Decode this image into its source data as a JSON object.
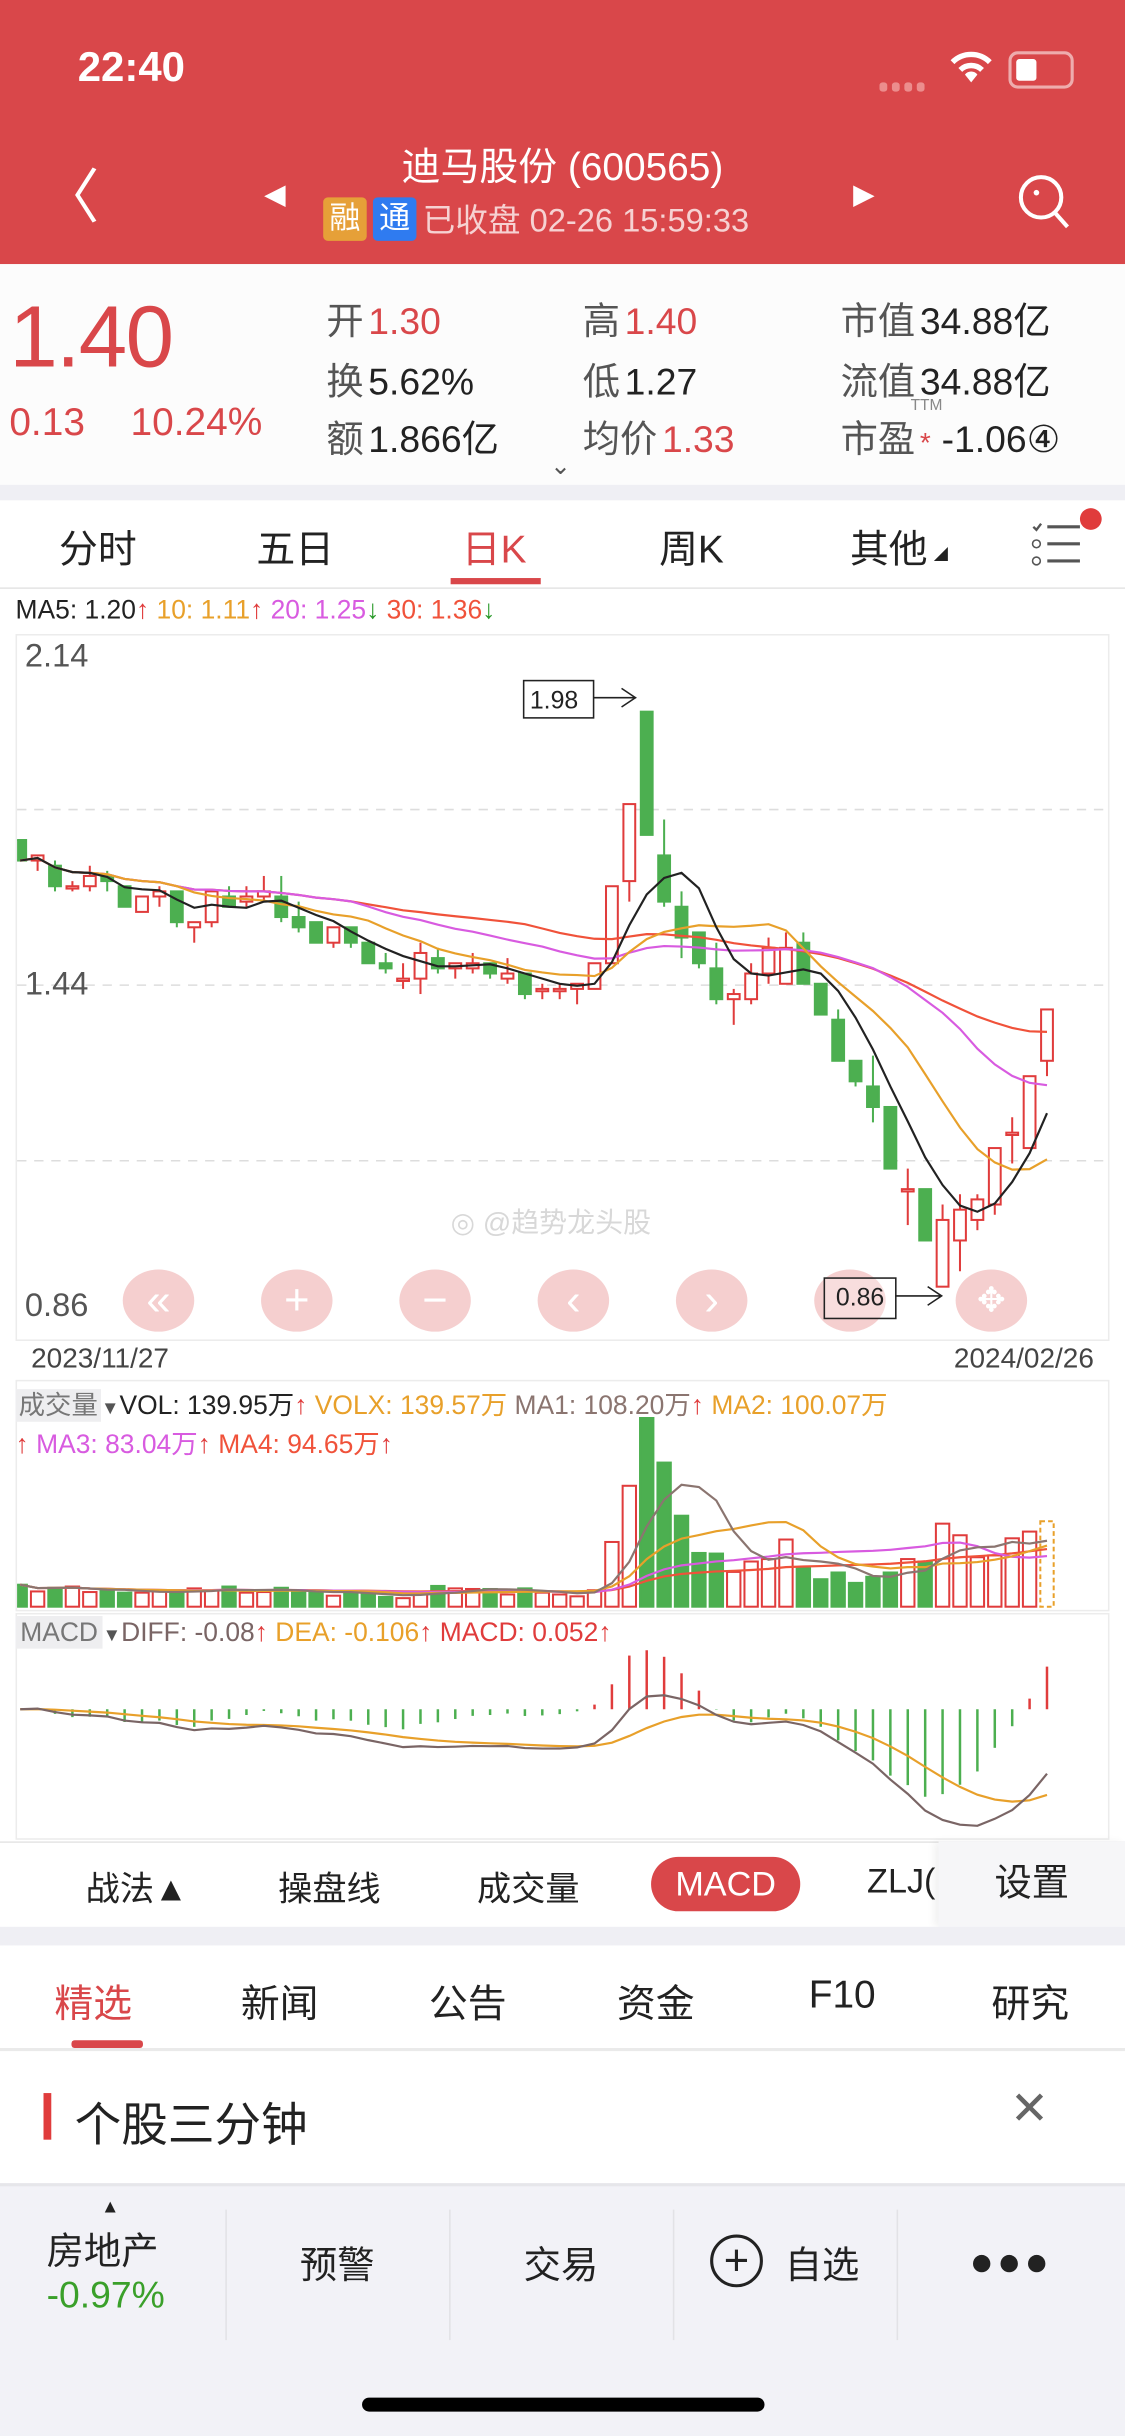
{
  "status_bar": {
    "time": "22:40"
  },
  "header": {
    "title": "迪马股份 (600565)",
    "badge_margin": "融",
    "badge_connect": "通",
    "market_status": "已收盘 02-26 15:59:33",
    "colors": {
      "background": "#d9474a",
      "badge_margin": "#e6a038",
      "badge_connect": "#2f7bf0"
    }
  },
  "quote": {
    "price": "1.40",
    "change": "0.13",
    "change_pct": "10.24%",
    "stats": [
      {
        "label": "开",
        "value": "1.30",
        "color": "red"
      },
      {
        "label": "换",
        "value": "5.62%",
        "color": "dark"
      },
      {
        "label": "额",
        "value": "1.866亿",
        "color": "dark"
      },
      {
        "label": "高",
        "value": "1.40",
        "color": "red"
      },
      {
        "label": "低",
        "value": "1.27",
        "color": "dark"
      },
      {
        "label": "均价",
        "value": "1.33",
        "color": "red"
      },
      {
        "label": "市值",
        "value": "34.88亿",
        "color": "dark"
      },
      {
        "label": "流值",
        "value": "34.88亿",
        "color": "dark"
      },
      {
        "label": "市盈",
        "value": "-1.06④",
        "color": "dark",
        "sup": "TTM",
        "mark": "*"
      }
    ]
  },
  "period_tabs": [
    {
      "label": "分时"
    },
    {
      "label": "五日"
    },
    {
      "label": "日K",
      "active": true
    },
    {
      "label": "周K"
    },
    {
      "label": "其他"
    }
  ],
  "ma_legend": {
    "ma5": "MA5: 1.20",
    "ma5_arrow": "↑",
    "ma10": "10: 1.11",
    "ma10_arrow": "↑",
    "ma20": "20: 1.25",
    "ma20_arrow": "↓",
    "ma30": "30: 1.36",
    "ma30_arrow": "↓"
  },
  "price_axis": {
    "top": "2.14",
    "mid": "1.44",
    "bottom": "0.86"
  },
  "date_axis": {
    "start": "2023/11/27",
    "end": "2024/02/26"
  },
  "annotations": {
    "high": "1.98",
    "low": "0.86"
  },
  "watermark": "@趋势龙头股",
  "volume_legend": {
    "name": "成交量",
    "vol": "VOL: 139.95万",
    "vol_arrow": "↑",
    "volx": "VOLX: 139.57万",
    "ma1": "MA1: 108.20万",
    "ma1_arrow": "↑",
    "ma2": "MA2: 100.07万",
    "ma2_arrow": "↑",
    "ma3": "MA3: 83.04万",
    "ma3_arrow": "↑",
    "ma4": "MA4: 94.65万",
    "ma4_arrow": "↑"
  },
  "macd_legend": {
    "name": "MACD",
    "diff": "DIFF: -0.08",
    "diff_arrow": "↑",
    "dea": "DEA: -0.106",
    "dea_arrow": "↑",
    "macd": "MACD: 0.052",
    "macd_arrow": "↑"
  },
  "indicator_bar": {
    "items": [
      "战法▲",
      "操盘线",
      "成交量",
      "MACD",
      "ZLJ("
    ],
    "active": "MACD",
    "settings": "设置"
  },
  "news_tabs": [
    {
      "label": "精选",
      "active": true
    },
    {
      "label": "新闻"
    },
    {
      "label": "公告"
    },
    {
      "label": "资金"
    },
    {
      "label": "F10"
    },
    {
      "label": "研究"
    }
  ],
  "section": {
    "title": "个股三分钟"
  },
  "bottom_bar": {
    "sector": "房地产",
    "sector_change": "-0.97%",
    "alert": "预警",
    "trade": "交易",
    "watchlist": "自选"
  },
  "chart_data": {
    "type": "candlestick",
    "date_range": [
      "2023/11/27",
      "2024/02/26"
    ],
    "y_range_labels": [
      "2.14",
      "1.44",
      "0.86"
    ],
    "up_color": "#e03c3c",
    "down_color": "#4caf50",
    "ma_colors": {
      "ma5": "#222222",
      "ma10": "#e8a02a",
      "ma20": "#d85be0",
      "ma30": "#f0523a"
    },
    "ohlc": [
      [
        1.73,
        1.73,
        1.69,
        1.69
      ],
      [
        1.69,
        1.7,
        1.67,
        1.7
      ],
      [
        1.68,
        1.69,
        1.63,
        1.64
      ],
      [
        1.64,
        1.65,
        1.63,
        1.64
      ],
      [
        1.64,
        1.68,
        1.63,
        1.66
      ],
      [
        1.66,
        1.67,
        1.63,
        1.65
      ],
      [
        1.64,
        1.64,
        1.6,
        1.6
      ],
      [
        1.59,
        1.62,
        1.59,
        1.62
      ],
      [
        1.62,
        1.64,
        1.6,
        1.63
      ],
      [
        1.63,
        1.63,
        1.56,
        1.57
      ],
      [
        1.56,
        1.57,
        1.53,
        1.57
      ],
      [
        1.57,
        1.63,
        1.56,
        1.63
      ],
      [
        1.62,
        1.64,
        1.6,
        1.6
      ],
      [
        1.61,
        1.64,
        1.6,
        1.62
      ],
      [
        1.62,
        1.66,
        1.61,
        1.63
      ],
      [
        1.62,
        1.66,
        1.57,
        1.58
      ],
      [
        1.58,
        1.61,
        1.55,
        1.56
      ],
      [
        1.57,
        1.57,
        1.53,
        1.53
      ],
      [
        1.53,
        1.56,
        1.52,
        1.56
      ],
      [
        1.56,
        1.56,
        1.52,
        1.53
      ],
      [
        1.53,
        1.53,
        1.49,
        1.49
      ],
      [
        1.49,
        1.51,
        1.47,
        1.48
      ],
      [
        1.46,
        1.49,
        1.44,
        1.46
      ],
      [
        1.46,
        1.53,
        1.43,
        1.51
      ],
      [
        1.5,
        1.52,
        1.47,
        1.48
      ],
      [
        1.48,
        1.49,
        1.46,
        1.49
      ],
      [
        1.48,
        1.51,
        1.47,
        1.49
      ],
      [
        1.49,
        1.49,
        1.46,
        1.47
      ],
      [
        1.46,
        1.5,
        1.45,
        1.47
      ],
      [
        1.47,
        1.47,
        1.42,
        1.43
      ],
      [
        1.44,
        1.45,
        1.42,
        1.44
      ],
      [
        1.44,
        1.45,
        1.42,
        1.44
      ],
      [
        1.44,
        1.45,
        1.41,
        1.45
      ],
      [
        1.44,
        1.49,
        1.44,
        1.49
      ],
      [
        1.49,
        1.64,
        1.49,
        1.64
      ],
      [
        1.65,
        1.8,
        1.61,
        1.8
      ],
      [
        1.98,
        1.98,
        1.74,
        1.74
      ],
      [
        1.7,
        1.77,
        1.6,
        1.61
      ],
      [
        1.6,
        1.63,
        1.5,
        1.54
      ],
      [
        1.55,
        1.55,
        1.48,
        1.49
      ],
      [
        1.48,
        1.53,
        1.41,
        1.42
      ],
      [
        1.42,
        1.44,
        1.37,
        1.43
      ],
      [
        1.42,
        1.49,
        1.41,
        1.47
      ],
      [
        1.47,
        1.54,
        1.45,
        1.52
      ],
      [
        1.45,
        1.55,
        1.45,
        1.52
      ],
      [
        1.53,
        1.55,
        1.45,
        1.45
      ],
      [
        1.45,
        1.45,
        1.39,
        1.39
      ],
      [
        1.38,
        1.4,
        1.3,
        1.3
      ],
      [
        1.3,
        1.3,
        1.25,
        1.26
      ],
      [
        1.25,
        1.31,
        1.18,
        1.21
      ],
      [
        1.21,
        1.21,
        1.09,
        1.09
      ],
      [
        1.05,
        1.09,
        0.98,
        1.05
      ],
      [
        1.05,
        1.05,
        0.95,
        0.95
      ],
      [
        0.86,
        1.02,
        0.86,
        0.99
      ],
      [
        0.95,
        1.04,
        0.89,
        1.01
      ],
      [
        0.99,
        1.04,
        0.97,
        1.03
      ],
      [
        1.02,
        1.13,
        1.0,
        1.13
      ],
      [
        1.16,
        1.19,
        1.1,
        1.16
      ],
      [
        1.13,
        1.27,
        1.13,
        1.27
      ],
      [
        1.3,
        1.4,
        1.27,
        1.4
      ]
    ],
    "volume_wan": [
      36,
      25,
      31,
      33,
      24,
      27,
      23,
      23,
      25,
      23,
      30,
      27,
      33,
      23,
      24,
      31,
      24,
      23,
      18,
      24,
      22,
      16,
      14,
      21,
      34,
      30,
      29,
      29,
      20,
      30,
      23,
      20,
      17,
      27,
      106,
      198,
      309,
      236,
      149,
      88,
      87,
      57,
      74,
      78,
      110,
      63,
      45,
      56,
      39,
      49,
      56,
      78,
      74,
      136,
      117,
      81,
      84,
      112,
      123,
      140
    ]
  }
}
